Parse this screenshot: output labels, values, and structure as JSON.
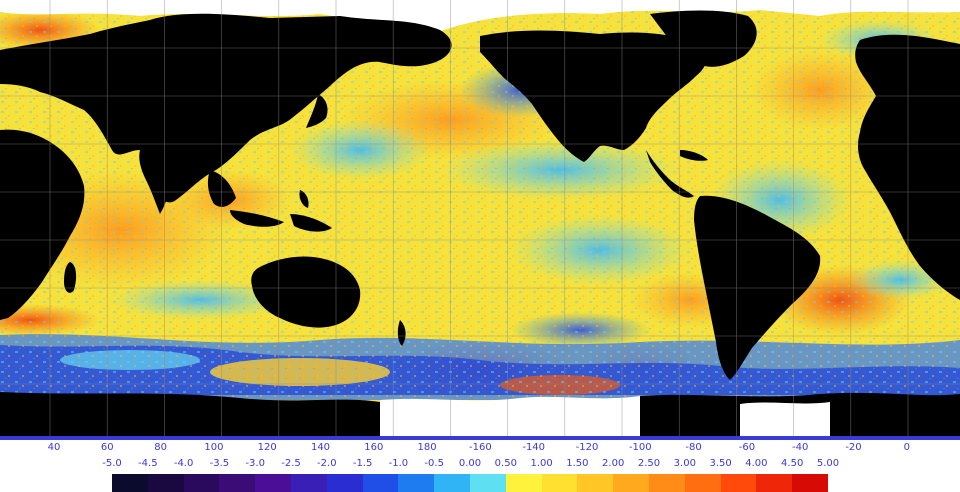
{
  "map": {
    "longitude_labels": [
      "40",
      "60",
      "80",
      "100",
      "120",
      "140",
      "160",
      "180",
      "-160",
      "-140",
      "-120",
      "-100",
      "-80",
      "-60",
      "-40",
      "-20",
      "0"
    ],
    "land_color": "#000000",
    "ice_color": "#ffffff",
    "grid_color": "#8a8a8a"
  },
  "legend": {
    "scale_labels": [
      "-5.0",
      "-4.5",
      "-4.0",
      "-3.5",
      "-3.0",
      "-2.5",
      "-2.0",
      "-1.5",
      "-1.0",
      "-0.5",
      "0.00",
      "0.50",
      "1.00",
      "1.50",
      "2.00",
      "2.50",
      "3.00",
      "3.50",
      "4.00",
      "4.50",
      "5.00"
    ],
    "colors": [
      "#0b0b2e",
      "#1a0840",
      "#2a0a5c",
      "#3c0c76",
      "#4a0f96",
      "#3a1fb6",
      "#2a2ed2",
      "#1f4fe6",
      "#1e7cf0",
      "#30b4f6",
      "#5ee0f2",
      "#fff23c",
      "#ffe030",
      "#ffc626",
      "#ffaa1e",
      "#ff8c16",
      "#ff6e10",
      "#ff4a0c",
      "#f02608",
      "#d80a06"
    ]
  }
}
